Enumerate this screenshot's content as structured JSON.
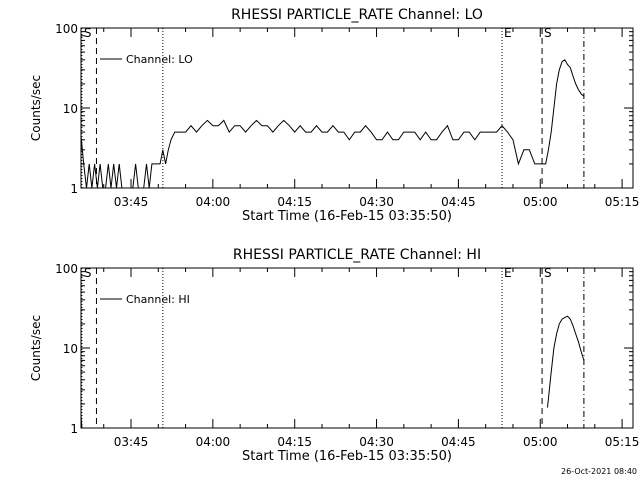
{
  "footer": {
    "timestamp": "26-Oct-2021 08:40"
  },
  "chart_data": [
    {
      "type": "line",
      "title": "RHESSI PARTICLE_RATE Channel: LO",
      "xlabel": "Start Time (16-Feb-15 03:35:50)",
      "ylabel": "Counts/sec",
      "yscale": "log",
      "ylim": [
        1,
        100
      ],
      "xlim": [
        "03:35:50",
        "05:17:00"
      ],
      "x_ticks": [
        "03:45",
        "04:00",
        "04:15",
        "04:30",
        "04:45",
        "05:00",
        "05:15"
      ],
      "y_ticks": [
        "1",
        "10",
        "100"
      ],
      "legend": "Channel: LO",
      "legend_position": "top-left",
      "markers": [
        {
          "label": "S",
          "time": "03:36:00",
          "style": "dotted"
        },
        {
          "label": "",
          "time": "03:38:40",
          "style": "dashed"
        },
        {
          "label": "",
          "time": "03:50:50",
          "style": "dotted"
        },
        {
          "label": "E",
          "time": "04:53:00",
          "style": "dotted"
        },
        {
          "label": "S",
          "time": "05:00:20",
          "style": "dashed"
        },
        {
          "label": "",
          "time": "05:08:00",
          "style": "dashdot"
        }
      ],
      "series": [
        {
          "x": [
            "03:35:50",
            "03:36:20",
            "03:36:50",
            "03:37:20",
            "03:37:50",
            "03:38:20",
            "03:38:50",
            "03:39:20",
            "03:39:50",
            "03:40:20",
            "03:40:50",
            "03:41:20",
            "03:41:50",
            "03:42:20",
            "03:42:50",
            "03:43:20",
            "03:43:50",
            "03:44:20",
            "03:44:50",
            "03:45:20",
            "03:45:50",
            "03:46:20",
            "03:46:50",
            "03:47:20",
            "03:47:50",
            "03:48:20",
            "03:48:50",
            "03:49:20",
            "03:49:50",
            "03:50:20",
            "03:50:50",
            "03:51:20",
            "03:51:50",
            "03:52:20",
            "03:53:00",
            "03:54:00",
            "03:55:00",
            "03:56:00",
            "03:57:00",
            "03:58:00",
            "03:59:00",
            "04:00:00",
            "04:01:00",
            "04:02:00",
            "04:03:00",
            "04:04:00",
            "04:05:00",
            "04:06:00",
            "04:07:00",
            "04:08:00",
            "04:09:00",
            "04:10:00",
            "04:11:00",
            "04:12:00",
            "04:13:00",
            "04:14:00",
            "04:15:00",
            "04:16:00",
            "04:17:00",
            "04:18:00",
            "04:19:00",
            "04:20:00",
            "04:21:00",
            "04:22:00",
            "04:23:00",
            "04:24:00",
            "04:25:00",
            "04:26:00",
            "04:27:00",
            "04:28:00",
            "04:29:00",
            "04:30:00",
            "04:31:00",
            "04:32:00",
            "04:33:00",
            "04:34:00",
            "04:35:00",
            "04:36:00",
            "04:37:00",
            "04:38:00",
            "04:39:00",
            "04:40:00",
            "04:41:00",
            "04:42:00",
            "04:43:00",
            "04:44:00",
            "04:45:00",
            "04:46:00",
            "04:47:00",
            "04:48:00",
            "04:49:00",
            "04:50:00",
            "04:51:00",
            "04:52:00",
            "04:53:00",
            "04:54:00",
            "04:55:00",
            "04:56:00",
            "04:57:00",
            "04:58:00",
            "04:59:00",
            "05:00:00",
            "05:00:40",
            "05:01:00",
            "05:01:30",
            "05:02:00",
            "05:02:30",
            "05:03:00",
            "05:03:30",
            "05:04:00",
            "05:04:30",
            "05:05:00",
            "05:05:30",
            "05:06:00",
            "05:06:30",
            "05:07:00",
            "05:07:30",
            "05:08:00"
          ],
          "y": [
            4.5,
            2,
            1,
            2,
            1,
            2,
            1,
            2,
            1,
            1,
            2,
            1,
            2,
            1,
            2,
            1,
            1,
            1,
            1,
            1,
            2,
            1,
            1,
            1,
            2,
            1,
            2,
            2,
            2,
            2,
            3,
            2,
            3,
            4,
            5,
            5,
            5,
            6,
            5,
            6,
            7,
            6,
            6,
            7,
            5,
            6,
            6,
            5,
            6,
            7,
            6,
            6,
            5,
            6,
            7,
            6,
            5,
            6,
            5,
            5,
            6,
            5,
            5,
            6,
            5,
            5,
            4,
            5,
            5,
            6,
            5,
            4,
            4,
            5,
            4,
            4,
            5,
            5,
            5,
            4,
            5,
            4,
            4,
            5,
            6,
            4,
            4,
            5,
            5,
            4,
            5,
            5,
            5,
            5,
            6,
            5,
            4,
            2,
            3,
            3,
            2,
            2,
            2,
            2,
            3,
            5,
            10,
            20,
            30,
            38,
            40,
            35,
            32,
            25,
            20,
            17,
            15,
            14
          ]
        }
      ]
    },
    {
      "type": "line",
      "title": "RHESSI PARTICLE_RATE Channel: HI",
      "xlabel": "Start Time (16-Feb-15 03:35:50)",
      "ylabel": "Counts/sec",
      "yscale": "log",
      "ylim": [
        1,
        100
      ],
      "xlim": [
        "03:35:50",
        "05:17:00"
      ],
      "x_ticks": [
        "03:45",
        "04:00",
        "04:15",
        "04:30",
        "04:45",
        "05:00",
        "05:15"
      ],
      "y_ticks": [
        "1",
        "10",
        "100"
      ],
      "legend": "Channel: HI",
      "legend_position": "top-left",
      "markers": [
        {
          "label": "S",
          "time": "03:36:00",
          "style": "dotted"
        },
        {
          "label": "",
          "time": "03:38:40",
          "style": "dashed"
        },
        {
          "label": "",
          "time": "03:50:50",
          "style": "dotted"
        },
        {
          "label": "E",
          "time": "04:53:00",
          "style": "dotted"
        },
        {
          "label": "S",
          "time": "05:00:20",
          "style": "dashed"
        },
        {
          "label": "",
          "time": "05:08:00",
          "style": "dashdot"
        }
      ],
      "series": [
        {
          "segments": [
            {
              "x": [
                "03:35:50",
                "03:36:00"
              ],
              "y": [
                1.5,
                1.0
              ]
            },
            {
              "x": [
                "05:01:20",
                "05:02:00",
                "05:02:30",
                "05:03:00",
                "05:03:30",
                "05:04:00",
                "05:04:30",
                "05:05:00",
                "05:05:30",
                "05:06:00",
                "05:06:30",
                "05:07:00",
                "05:07:30",
                "05:08:00"
              ],
              "y": [
                1.8,
                5,
                10,
                15,
                20,
                23,
                24,
                25,
                23,
                19,
                15,
                12,
                9,
                7
              ]
            }
          ]
        }
      ]
    }
  ]
}
